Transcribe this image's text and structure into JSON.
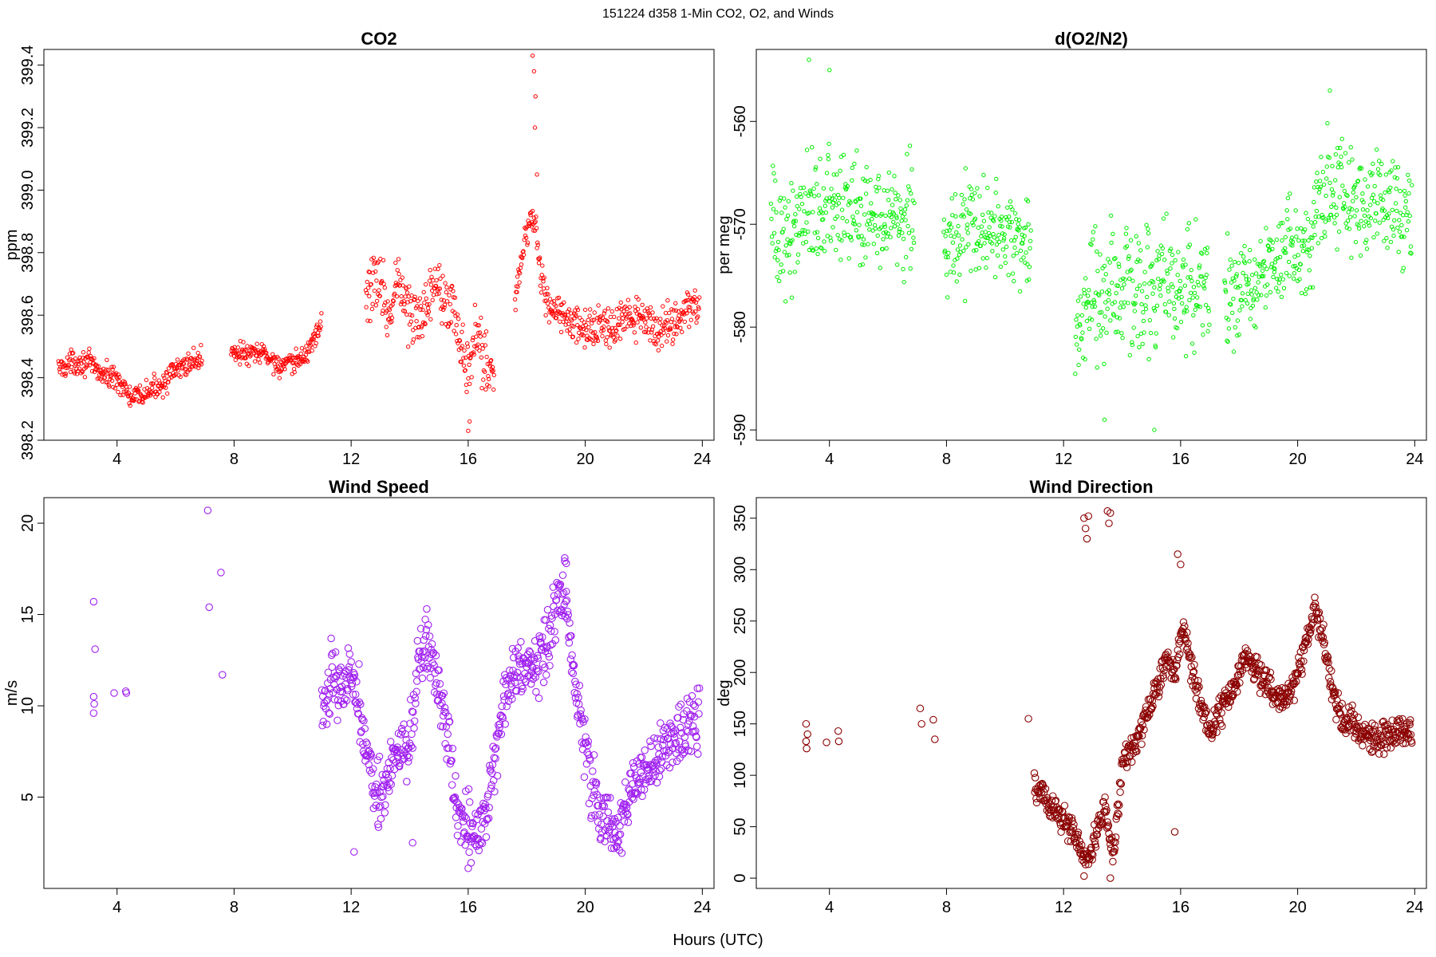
{
  "figure": {
    "title": "151224   d358   1-Min CO2, O2, and Winds",
    "xlabel": "Hours (UTC)"
  },
  "chart_data": [
    {
      "id": "co2",
      "type": "scatter",
      "title": "CO2",
      "xlabel": "",
      "ylabel": "ppm",
      "color": "#ff0000",
      "marker": "small-open-circle",
      "xlim": [
        1.5,
        24.4
      ],
      "ylim": [
        398.2,
        399.45
      ],
      "xticks": [
        4,
        8,
        12,
        16,
        20,
        24
      ],
      "yticks": [
        398.2,
        398.4,
        398.6,
        398.8,
        399.0,
        399.2,
        399.4
      ],
      "ytick_labels": [
        "398.2",
        "398.4",
        "398.6",
        "398.8",
        "399.0",
        "399.2",
        "399.4"
      ],
      "grid": false,
      "legend": "none",
      "segments": [
        {
          "x": [
            2.0,
            2.5,
            3.0,
            3.5,
            4.0,
            4.5,
            5.0,
            5.5,
            6.0,
            6.5,
            6.9
          ],
          "y": [
            398.43,
            398.45,
            398.45,
            398.41,
            398.4,
            398.33,
            398.35,
            398.38,
            398.42,
            398.45,
            398.46
          ],
          "spread": 0.03
        },
        {
          "x": [
            7.9,
            8.5,
            9.0,
            9.5,
            10.0,
            10.5,
            11.0
          ],
          "y": [
            398.49,
            398.47,
            398.48,
            398.44,
            398.44,
            398.48,
            398.58
          ],
          "spread": 0.03
        },
        {
          "x": [
            12.5,
            12.8,
            13.0,
            13.3,
            13.6,
            14.0,
            14.3,
            14.7,
            15.0,
            15.3,
            15.6,
            16.0,
            16.3,
            16.6,
            16.9
          ],
          "y": [
            398.65,
            398.72,
            398.7,
            398.6,
            398.72,
            398.6,
            398.57,
            398.68,
            398.72,
            398.65,
            398.58,
            398.4,
            398.55,
            398.45,
            398.4
          ],
          "spread": 0.08
        },
        {
          "x": [
            17.6,
            17.9,
            18.2,
            18.5,
            18.8,
            19.2,
            19.6,
            20.0,
            20.5,
            21.0,
            21.5,
            22.0,
            22.5,
            23.0,
            23.5,
            23.9
          ],
          "y": [
            398.65,
            398.82,
            398.95,
            398.72,
            398.62,
            398.6,
            398.57,
            398.55,
            398.57,
            398.55,
            398.6,
            398.58,
            398.55,
            398.58,
            398.62,
            398.62
          ],
          "spread": 0.05
        }
      ],
      "outliers": [
        {
          "x": 18.2,
          "y": 399.43
        },
        {
          "x": 18.25,
          "y": 399.38
        },
        {
          "x": 18.3,
          "y": 399.3
        },
        {
          "x": 18.28,
          "y": 399.2
        },
        {
          "x": 18.35,
          "y": 399.05
        },
        {
          "x": 16.0,
          "y": 398.23
        },
        {
          "x": 16.05,
          "y": 398.26
        }
      ]
    },
    {
      "id": "o2",
      "type": "scatter",
      "title": "d(O2/N2)",
      "xlabel": "",
      "ylabel": "per meg",
      "color": "#00ee00",
      "marker": "small-open-circle",
      "xlim": [
        1.5,
        24.4
      ],
      "ylim": [
        -591,
        -553
      ],
      "xticks": [
        4,
        8,
        12,
        16,
        20,
        24
      ],
      "yticks": [
        -590,
        -580,
        -570,
        -560
      ],
      "ytick_labels": [
        "-590",
        "-580",
        "-570",
        "-560"
      ],
      "grid": false,
      "legend": "none",
      "segments": [
        {
          "x": [
            2.0,
            2.5,
            3.0,
            3.5,
            4.0,
            4.5,
            5.0,
            5.5,
            6.0,
            6.5,
            6.9
          ],
          "y": [
            -570,
            -572,
            -569,
            -568,
            -568,
            -569,
            -569,
            -568,
            -569,
            -569,
            -568
          ],
          "spread": 4.5
        },
        {
          "x": [
            7.9,
            8.5,
            9.0,
            9.5,
            10.0,
            10.5,
            10.9
          ],
          "y": [
            -572,
            -571,
            -570,
            -571,
            -571,
            -571,
            -572
          ],
          "spread": 4.0
        },
        {
          "x": [
            12.4,
            13.0,
            13.5,
            14.0,
            14.5,
            15.0,
            15.5,
            16.0,
            16.5,
            17.0
          ],
          "y": [
            -580,
            -578,
            -577,
            -576,
            -577,
            -576,
            -575,
            -576,
            -576,
            -577
          ],
          "spread": 5.0
        },
        {
          "x": [
            17.5,
            18.0,
            18.5,
            19.0,
            19.5,
            20.0,
            20.5,
            21.0,
            21.5,
            22.0,
            22.5,
            23.0,
            23.5,
            23.9
          ],
          "y": [
            -577,
            -576,
            -576,
            -574,
            -572,
            -572,
            -571,
            -566,
            -566,
            -568,
            -568,
            -568,
            -569,
            -569
          ],
          "spread": 4.0
        }
      ],
      "outliers": [
        {
          "x": 3.3,
          "y": -554
        },
        {
          "x": 4.0,
          "y": -555
        },
        {
          "x": 21.1,
          "y": -557
        },
        {
          "x": 15.1,
          "y": -590
        },
        {
          "x": 13.4,
          "y": -589
        }
      ]
    },
    {
      "id": "wind_speed",
      "type": "scatter",
      "title": "Wind Speed",
      "xlabel": "",
      "ylabel": "m/s",
      "color": "#a020f0",
      "marker": "open-circle",
      "xlim": [
        1.5,
        24.4
      ],
      "ylim": [
        0,
        21.4
      ],
      "xticks": [
        4,
        8,
        12,
        16,
        20,
        24
      ],
      "yticks": [
        5,
        10,
        15,
        20
      ],
      "ytick_labels": [
        "5",
        "10",
        "15",
        "20"
      ],
      "grid": false,
      "legend": "none",
      "points": [
        {
          "x": 3.2,
          "y": 15.7
        },
        {
          "x": 3.25,
          "y": 13.1
        },
        {
          "x": 3.2,
          "y": 10.5
        },
        {
          "x": 3.22,
          "y": 10.1
        },
        {
          "x": 3.2,
          "y": 9.6
        },
        {
          "x": 3.9,
          "y": 10.7
        },
        {
          "x": 4.3,
          "y": 10.8
        },
        {
          "x": 4.32,
          "y": 10.7
        },
        {
          "x": 7.1,
          "y": 20.7
        },
        {
          "x": 7.15,
          "y": 15.4
        },
        {
          "x": 7.55,
          "y": 17.3
        },
        {
          "x": 7.6,
          "y": 11.7
        }
      ],
      "segments": [
        {
          "x": [
            11.0,
            11.3,
            11.6,
            12.0,
            12.3,
            12.6,
            13.0,
            13.3,
            13.6,
            14.0,
            14.3,
            14.6,
            15.0,
            15.3,
            15.6,
            16.0,
            16.3,
            16.6,
            17.0,
            17.3,
            17.6,
            18.0,
            18.3,
            18.6,
            19.0,
            19.3,
            19.6,
            19.9,
            20.2,
            20.5,
            20.8,
            21.1,
            21.5,
            21.9,
            22.3,
            22.7,
            23.1,
            23.5,
            23.9
          ],
          "y": [
            9.0,
            12.0,
            11.0,
            12.0,
            10.0,
            7.0,
            5.0,
            6.0,
            7.5,
            8.0,
            12.0,
            13.5,
            11.0,
            8.0,
            4.5,
            3.5,
            2.5,
            4.0,
            8.0,
            11.0,
            12.0,
            12.5,
            12.0,
            13.0,
            15.0,
            16.5,
            12.0,
            8.5,
            6.0,
            4.0,
            3.5,
            3.0,
            5.0,
            6.5,
            7.0,
            7.8,
            8.5,
            9.2,
            8.8
          ],
          "spread": 1.4
        }
      ],
      "outliers": [
        {
          "x": 19.3,
          "y": 18.1
        },
        {
          "x": 19.35,
          "y": 17.8
        },
        {
          "x": 16.0,
          "y": 1.1
        },
        {
          "x": 16.1,
          "y": 1.4
        },
        {
          "x": 12.1,
          "y": 2.0
        },
        {
          "x": 14.1,
          "y": 2.5
        }
      ]
    },
    {
      "id": "wind_direction",
      "type": "scatter",
      "title": "Wind Direction",
      "xlabel": "",
      "ylabel": "deg",
      "color": "#8b0000",
      "marker": "open-circle",
      "xlim": [
        1.5,
        24.4
      ],
      "ylim": [
        -10,
        370
      ],
      "xticks": [
        4,
        8,
        12,
        16,
        20,
        24
      ],
      "yticks": [
        0,
        50,
        100,
        150,
        200,
        250,
        300,
        350
      ],
      "ytick_labels": [
        "0",
        "50",
        "100",
        "150",
        "200",
        "250",
        "300",
        "350"
      ],
      "grid": false,
      "legend": "none",
      "points": [
        {
          "x": 3.2,
          "y": 150
        },
        {
          "x": 3.25,
          "y": 140
        },
        {
          "x": 3.2,
          "y": 133
        },
        {
          "x": 3.22,
          "y": 126
        },
        {
          "x": 3.9,
          "y": 132
        },
        {
          "x": 4.3,
          "y": 143
        },
        {
          "x": 4.32,
          "y": 133
        },
        {
          "x": 7.1,
          "y": 165
        },
        {
          "x": 7.15,
          "y": 150
        },
        {
          "x": 7.55,
          "y": 154
        },
        {
          "x": 7.6,
          "y": 135
        },
        {
          "x": 10.8,
          "y": 155
        }
      ],
      "segments": [
        {
          "x": [
            11.0,
            11.3,
            11.6,
            11.9,
            12.2,
            12.5,
            12.8,
            13.1,
            13.4,
            13.7,
            14.0,
            14.3,
            14.6,
            14.9,
            15.2,
            15.5,
            15.8,
            16.1,
            16.4,
            16.7,
            17.0,
            17.3,
            17.6,
            17.9,
            18.2,
            18.5,
            18.8,
            19.1,
            19.4,
            19.7,
            20.0,
            20.3,
            20.6,
            20.9,
            21.2,
            21.5,
            21.9,
            22.3,
            22.7,
            23.1,
            23.5,
            23.9
          ],
          "y": [
            90,
            80,
            70,
            60,
            50,
            35,
            15,
            40,
            70,
            20,
            110,
            125,
            140,
            165,
            185,
            215,
            200,
            250,
            200,
            170,
            140,
            160,
            175,
            190,
            215,
            205,
            195,
            185,
            175,
            180,
            195,
            230,
            265,
            230,
            180,
            155,
            148,
            140,
            135,
            140,
            142,
            138
          ],
          "spread": 12
        }
      ],
      "outliers": [
        {
          "x": 12.7,
          "y": 350
        },
        {
          "x": 12.75,
          "y": 340
        },
        {
          "x": 12.8,
          "y": 330
        },
        {
          "x": 12.85,
          "y": 352
        },
        {
          "x": 13.5,
          "y": 357
        },
        {
          "x": 13.55,
          "y": 345
        },
        {
          "x": 13.6,
          "y": 355
        },
        {
          "x": 15.9,
          "y": 315
        },
        {
          "x": 16.0,
          "y": 305
        },
        {
          "x": 15.8,
          "y": 45
        },
        {
          "x": 12.7,
          "y": 2
        },
        {
          "x": 13.6,
          "y": 0
        }
      ]
    }
  ]
}
